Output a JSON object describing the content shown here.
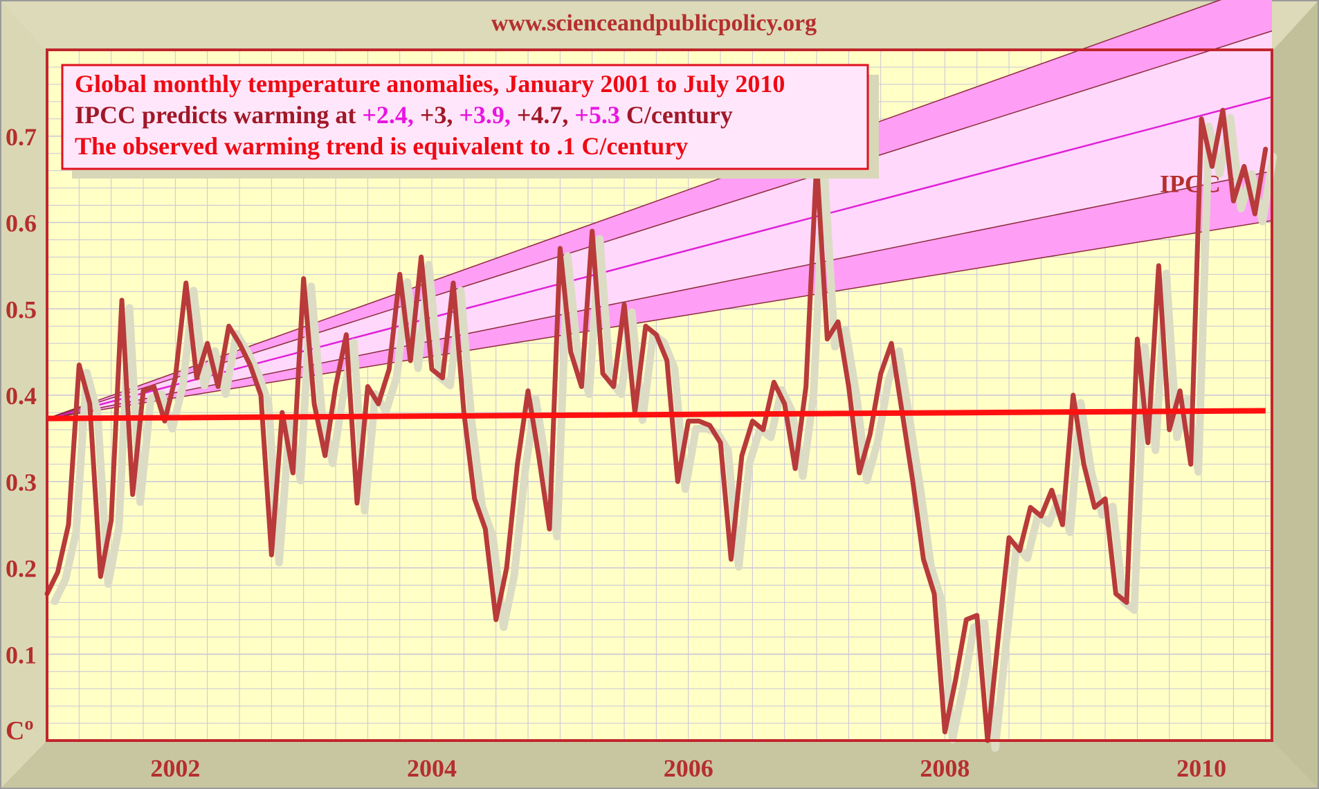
{
  "source_url": "www.scienceandpublicpolicy.org",
  "colors": {
    "frame": "#d2d0ae",
    "plot_bg": "#ffffc6",
    "grid": "#c9c4d8",
    "border": "#c0262c",
    "label": "#b52e2e",
    "observed_primary": "#b83a3a",
    "observed_shadow": "#dcdcc5",
    "trend": "#ff1010",
    "ipcc_band_outer": "#ff9ef5",
    "ipcc_band_inner": "#ffd8fb",
    "ipcc_center": "#e020d8",
    "ipcc_edges": "#8c2a3a",
    "box_red": "#ee0a14",
    "box_purple": "#a01828",
    "box_magenta": "#e815e0"
  },
  "textbox": {
    "line1": "Global monthly temperature anomalies, January 2001 to July 2010",
    "line2": {
      "prefix": "IPCC predicts warming at ",
      "v1": "+2.4,",
      "v2": " +3,",
      "v3": " +3.9,",
      "v4": " +4.7,",
      "v5": " +5.3",
      "suffix": " C/century"
    },
    "line3": "The observed warming trend is equivalent to .1 C/century"
  },
  "chart_data": {
    "type": "line",
    "unit_label": "C°",
    "ylim": [
      0,
      0.8
    ],
    "xlim": [
      2001.0,
      2010.55
    ],
    "y_ticks": [
      "0.1",
      "0.2",
      "0.3",
      "0.4",
      "0.5",
      "0.6",
      "0.7"
    ],
    "x_ticks": [
      "2002",
      "2004",
      "2006",
      "2008",
      "2010"
    ],
    "grid": true,
    "ipcc_label": "IPCC",
    "series": [
      {
        "name": "observed",
        "x": [
          2001.0,
          2001.083,
          2001.167,
          2001.25,
          2001.333,
          2001.417,
          2001.5,
          2001.583,
          2001.667,
          2001.75,
          2001.833,
          2001.917,
          2002.0,
          2002.083,
          2002.167,
          2002.25,
          2002.333,
          2002.417,
          2002.5,
          2002.583,
          2002.667,
          2002.75,
          2002.833,
          2002.917,
          2003.0,
          2003.083,
          2003.167,
          2003.25,
          2003.333,
          2003.417,
          2003.5,
          2003.583,
          2003.667,
          2003.75,
          2003.833,
          2003.917,
          2004.0,
          2004.083,
          2004.167,
          2004.25,
          2004.333,
          2004.417,
          2004.5,
          2004.583,
          2004.667,
          2004.75,
          2004.833,
          2004.917,
          2005.0,
          2005.083,
          2005.167,
          2005.25,
          2005.333,
          2005.417,
          2005.5,
          2005.583,
          2005.667,
          2005.75,
          2005.833,
          2005.917,
          2006.0,
          2006.083,
          2006.167,
          2006.25,
          2006.333,
          2006.417,
          2006.5,
          2006.583,
          2006.667,
          2006.75,
          2006.833,
          2006.917,
          2007.0,
          2007.083,
          2007.167,
          2007.25,
          2007.333,
          2007.417,
          2007.5,
          2007.583,
          2007.667,
          2007.75,
          2007.833,
          2007.917,
          2008.0,
          2008.083,
          2008.167,
          2008.25,
          2008.333,
          2008.417,
          2008.5,
          2008.583,
          2008.667,
          2008.75,
          2008.833,
          2008.917,
          2009.0,
          2009.083,
          2009.167,
          2009.25,
          2009.333,
          2009.417,
          2009.5,
          2009.583,
          2009.667,
          2009.75,
          2009.833,
          2009.917,
          2010.0,
          2010.083,
          2010.167,
          2010.25,
          2010.333,
          2010.417,
          2010.5
        ],
        "y": [
          0.17,
          0.195,
          0.25,
          0.435,
          0.39,
          0.19,
          0.255,
          0.51,
          0.285,
          0.405,
          0.41,
          0.37,
          0.42,
          0.53,
          0.42,
          0.46,
          0.41,
          0.48,
          0.46,
          0.435,
          0.4,
          0.215,
          0.38,
          0.31,
          0.535,
          0.39,
          0.33,
          0.41,
          0.47,
          0.275,
          0.41,
          0.39,
          0.43,
          0.54,
          0.44,
          0.56,
          0.43,
          0.42,
          0.53,
          0.38,
          0.28,
          0.245,
          0.14,
          0.2,
          0.32,
          0.405,
          0.33,
          0.245,
          0.57,
          0.45,
          0.41,
          0.59,
          0.425,
          0.41,
          0.505,
          0.38,
          0.48,
          0.47,
          0.44,
          0.3,
          0.37,
          0.37,
          0.365,
          0.345,
          0.21,
          0.33,
          0.37,
          0.36,
          0.415,
          0.39,
          0.315,
          0.41,
          0.67,
          0.465,
          0.485,
          0.41,
          0.31,
          0.355,
          0.425,
          0.46,
          0.38,
          0.3,
          0.21,
          0.17,
          0.01,
          0.07,
          0.14,
          0.145,
          0.0,
          0.12,
          0.235,
          0.22,
          0.27,
          0.26,
          0.29,
          0.25,
          0.4,
          0.32,
          0.27,
          0.28,
          0.17,
          0.16,
          0.465,
          0.345,
          0.55,
          0.36,
          0.405,
          0.32,
          0.72,
          0.665,
          0.73,
          0.625,
          0.665,
          0.61,
          0.685
        ]
      },
      {
        "name": "observed trend",
        "x": [
          2001.0,
          2010.5
        ],
        "y": [
          0.373,
          0.382
        ]
      }
    ],
    "ipcc_projection": {
      "start": [
        2001.0,
        0.373
      ],
      "rates_per_century": [
        2.4,
        3.0,
        3.9,
        4.7,
        5.3
      ]
    }
  }
}
